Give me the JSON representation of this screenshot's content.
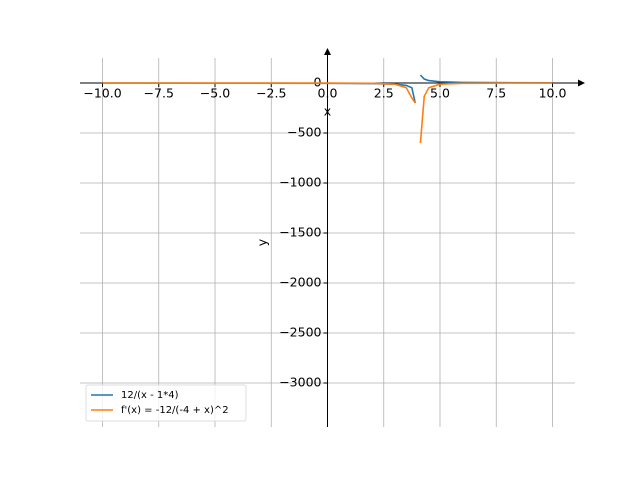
{
  "chart_data": {
    "type": "line",
    "x_label": "x",
    "y_label": "y",
    "x": [
      -10,
      -5,
      0,
      2,
      3,
      3.5,
      3.75,
      3.9,
      4,
      4.13,
      4.3,
      4.5,
      5,
      6,
      8,
      10
    ],
    "series": [
      {
        "name": "12/(x - 1*4)",
        "color": "#1f77b4",
        "values": [
          -0.86,
          -1.33,
          -3,
          -6,
          -12,
          -24,
          -48,
          -200,
          null,
          80,
          40,
          24,
          12,
          6,
          3,
          2
        ]
      },
      {
        "name": "f'(x) = -12/(-4 + x)^2",
        "color": "#ff7f0e",
        "values": [
          -0.06,
          -0.15,
          -0.75,
          -3,
          -12,
          -48,
          -150,
          -200,
          null,
          -600,
          -133,
          -48,
          -12,
          -3,
          -0.75,
          -0.33
        ]
      }
    ],
    "xlim": [
      -11,
      11
    ],
    "ylim": [
      -3440,
      250
    ],
    "xticks": [
      {
        "value": -10,
        "label": "−10.0"
      },
      {
        "value": -7.5,
        "label": "−7.5"
      },
      {
        "value": -5,
        "label": "−5.0"
      },
      {
        "value": -2.5,
        "label": "−2.5"
      },
      {
        "value": 0,
        "label": "0.0"
      },
      {
        "value": 2.5,
        "label": "2.5"
      },
      {
        "value": 5,
        "label": "5.0"
      },
      {
        "value": 7.5,
        "label": "7.5"
      },
      {
        "value": 10,
        "label": "10.0"
      }
    ],
    "yticks": [
      0,
      {
        "value": -500,
        "label": "−500"
      },
      {
        "value": -1000,
        "label": "−1000"
      },
      {
        "value": -1500,
        "label": "−1500"
      },
      {
        "value": -2000,
        "label": "−2000"
      },
      {
        "value": -2500,
        "label": "−2500"
      },
      {
        "value": -3000,
        "label": "−3000"
      }
    ],
    "grid": true,
    "legend": "lower left"
  }
}
